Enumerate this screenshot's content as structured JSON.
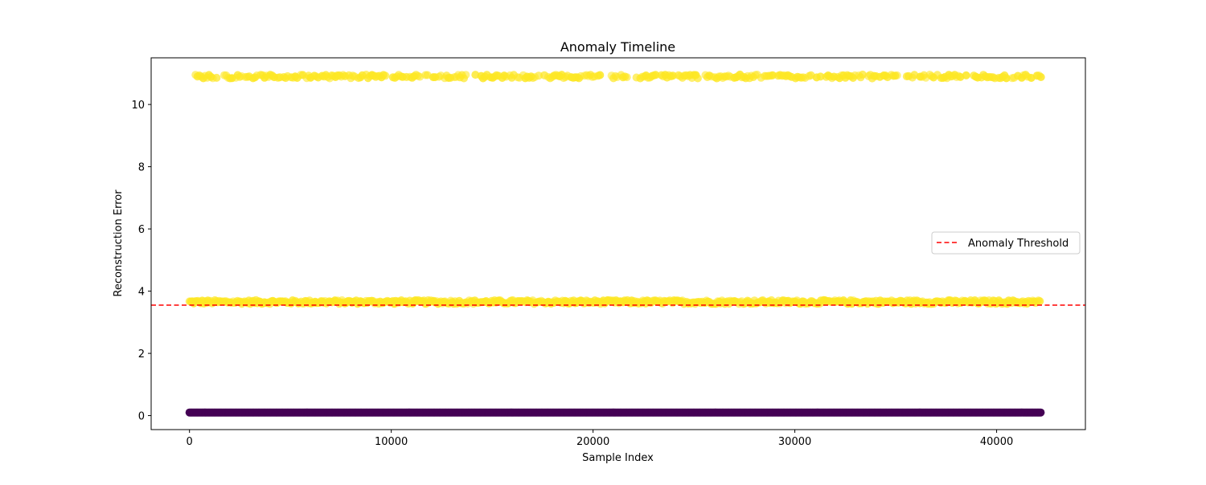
{
  "chart_data": {
    "type": "scatter",
    "title": "Anomaly Timeline",
    "xlabel": "Sample Index",
    "ylabel": "Reconstruction Error",
    "xlim": [
      -1900,
      44400
    ],
    "ylim": [
      -0.45,
      11.5
    ],
    "x_ticks": [
      0,
      10000,
      20000,
      30000,
      40000
    ],
    "y_ticks": [
      0,
      2,
      4,
      6,
      8,
      10
    ],
    "x_range_of_samples": [
      0,
      42200
    ],
    "point_levels": [
      {
        "y": 0.1,
        "status": "normal",
        "color": "#440154",
        "density": "continuous",
        "gaps": []
      },
      {
        "y": 3.65,
        "status": "anomaly",
        "color": "#fde725",
        "density": "dense",
        "gaps": []
      },
      {
        "y": 10.9,
        "status": "anomaly",
        "color": "#fde725",
        "density": "sparse",
        "gaps": [
          [
            20500,
            20900
          ],
          [
            21800,
            22100
          ],
          [
            25200,
            25500
          ],
          [
            35200,
            35500
          ],
          [
            38600,
            38800
          ]
        ]
      }
    ],
    "threshold": {
      "value": 3.55,
      "color": "#ff0000",
      "style": "dashed"
    },
    "legend": {
      "position": "center-right",
      "entries": [
        "Anomaly Threshold"
      ]
    },
    "grid": false
  }
}
